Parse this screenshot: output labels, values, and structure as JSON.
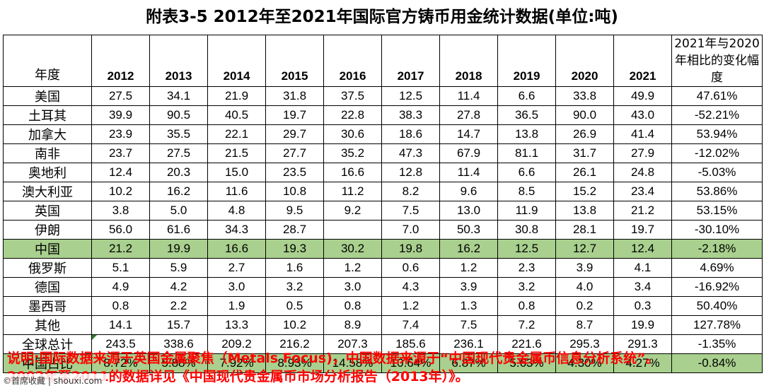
{
  "title": "附表3-5  2012年至2021年国际官方铸币用金统计数据(单位:吨)",
  "table": {
    "corner_label": "年度",
    "years": [
      "2012",
      "2013",
      "2014",
      "2015",
      "2016",
      "2017",
      "2018",
      "2019",
      "2020",
      "2021"
    ],
    "change_header": "2021年与2020年相比的变化幅度",
    "rows": [
      {
        "label": "美国",
        "values": [
          "27.5",
          "34.1",
          "21.9",
          "31.8",
          "37.5",
          "12.5",
          "11.4",
          "6.6",
          "33.8",
          "49.9"
        ],
        "change": "47.61%"
      },
      {
        "label": "土耳其",
        "values": [
          "39.9",
          "90.5",
          "40.5",
          "19.7",
          "22.8",
          "38.3",
          "27.8",
          "36.5",
          "90.0",
          "43.0"
        ],
        "change": "-52.21%"
      },
      {
        "label": "加拿大",
        "values": [
          "23.9",
          "35.5",
          "22.1",
          "29.7",
          "30.6",
          "18.6",
          "14.7",
          "13.8",
          "26.9",
          "41.4"
        ],
        "change": "53.94%"
      },
      {
        "label": "南非",
        "values": [
          "23.7",
          "27.5",
          "21.5",
          "27.7",
          "35.2",
          "47.3",
          "67.9",
          "81.1",
          "31.7",
          "27.9"
        ],
        "change": "-12.02%"
      },
      {
        "label": "奥地利",
        "values": [
          "12.4",
          "20.3",
          "15.0",
          "23.5",
          "16.6",
          "12.8",
          "11.4",
          "6.6",
          "26.1",
          "24.8"
        ],
        "change": "-5.03%"
      },
      {
        "label": "澳大利亚",
        "values": [
          "10.2",
          "16.2",
          "11.6",
          "10.8",
          "11.2",
          "8.2",
          "9.6",
          "8.5",
          "15.2",
          "23.4"
        ],
        "change": "53.86%"
      },
      {
        "label": "英国",
        "values": [
          "3.8",
          "5.0",
          "4.8",
          "9.5",
          "9.2",
          "7.5",
          "13.0",
          "11.9",
          "13.8",
          "21.2"
        ],
        "change": "53.15%"
      },
      {
        "label": "伊朗",
        "values": [
          "56.0",
          "61.6",
          "34.3",
          "28.7",
          "",
          "7.0",
          "50.3",
          "30.8",
          "28.1",
          "19.7"
        ],
        "change": "-30.10%"
      },
      {
        "label": "中国",
        "values": [
          "21.2",
          "19.9",
          "16.6",
          "19.3",
          "30.2",
          "19.8",
          "16.2",
          "12.5",
          "12.7",
          "12.4"
        ],
        "change": "-2.18%",
        "highlight": true
      },
      {
        "label": "俄罗斯",
        "values": [
          "5.1",
          "5.9",
          "2.7",
          "1.6",
          "1.2",
          "0.6",
          "1.2",
          "2.3",
          "3.9",
          "4.1"
        ],
        "change": "4.69%"
      },
      {
        "label": "德国",
        "values": [
          "4.9",
          "4.2",
          "3.0",
          "3.2",
          "3.0",
          "4.3",
          "3.9",
          "3.2",
          "4.0",
          "3.4"
        ],
        "change": "-16.92%"
      },
      {
        "label": "墨西哥",
        "values": [
          "0.8",
          "2.2",
          "1.9",
          "0.5",
          "0.8",
          "1.2",
          "1.3",
          "0.8",
          "0.2",
          "0.3"
        ],
        "change": "50.40%"
      },
      {
        "label": "其他",
        "values": [
          "14.1",
          "15.7",
          "13.3",
          "10.2",
          "8.9",
          "7.4",
          "7.5",
          "7.2",
          "8.7",
          "19.9"
        ],
        "change": "127.78%"
      },
      {
        "label": "全球总计",
        "values": [
          "243.5",
          "338.6",
          "209.2",
          "216.2",
          "207.3",
          "185.6",
          "236.1",
          "221.6",
          "295.3",
          "291.3"
        ],
        "change": "-1.35%",
        "flag_first_value": true
      },
      {
        "label": "中国占比",
        "values": [
          "8.72%",
          "5.88%",
          "7.92%",
          "8.93%",
          "14.58%",
          "10.64%",
          "6.87%",
          "5.63%",
          "4.30%",
          "4.27%"
        ],
        "change": "-0.84%",
        "highlight": true
      }
    ]
  },
  "note": {
    "line1": "说明:国际数据来源于英国金属聚焦（Metals Focus)，中国数据来源于“中国现代贵金属币信息分析系统”。",
    "line2": "2002年至2011的数据详见《中国现代贵金属币市场分析报告（2013年）》。"
  },
  "watermark": "©首席收藏 | shouxi.com",
  "colors": {
    "highlight_row": "#a9d08e",
    "note_text": "#ff0000"
  }
}
